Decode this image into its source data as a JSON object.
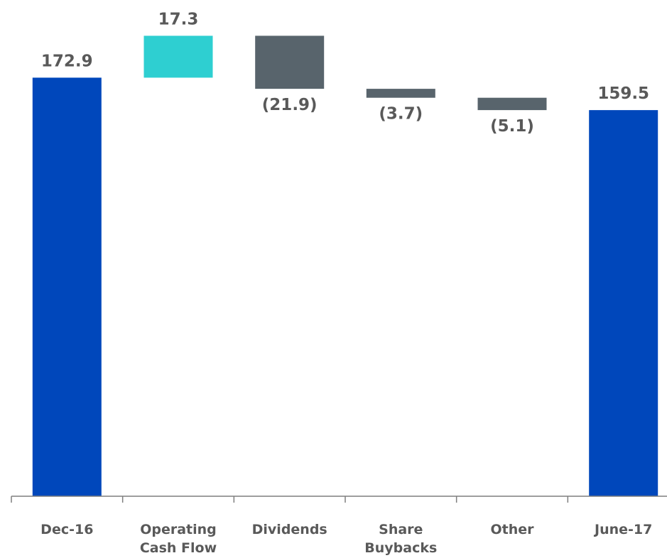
{
  "chart_data": {
    "type": "bar",
    "subtype": "waterfall",
    "title": "",
    "xlabel": "",
    "ylabel": "",
    "ylim": [
      0,
      192
    ],
    "grid": false,
    "legend": "none",
    "categories": [
      [
        "Dec-16"
      ],
      [
        "Operating",
        "Cash Flow"
      ],
      [
        "Dividends"
      ],
      [
        "Share",
        "Buybacks"
      ],
      [
        "Other"
      ],
      [
        "June-17"
      ]
    ],
    "values": [
      172.9,
      17.3,
      -21.9,
      -3.7,
      -5.1,
      159.5
    ],
    "kinds": [
      "total",
      "increase",
      "decrease",
      "decrease",
      "decrease",
      "total"
    ],
    "data_labels": [
      "172.9",
      "17.3",
      "(21.9)",
      "(3.7)",
      "(5.1)",
      "159.5"
    ],
    "colors": {
      "total": "#0047BB",
      "increase": "#2ECFD1",
      "decrease": "#58646C",
      "label": "#595959",
      "axis": "#7F7F7F"
    }
  }
}
